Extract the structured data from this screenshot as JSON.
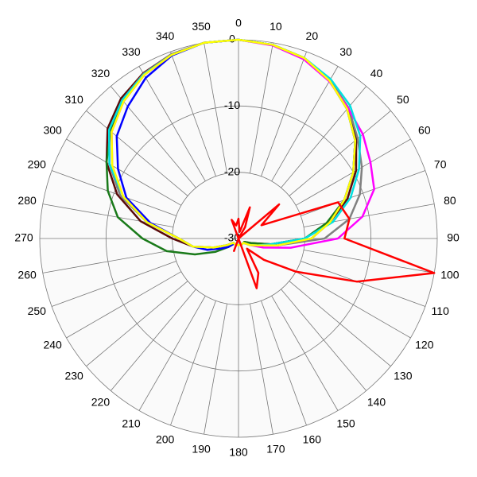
{
  "chart_data": {
    "type": "polar",
    "theta": [
      0,
      10,
      20,
      30,
      40,
      50,
      60,
      70,
      80,
      90,
      100,
      110,
      120,
      130,
      140,
      150,
      160,
      170,
      180,
      190,
      200,
      210,
      220,
      230,
      240,
      250,
      260,
      270,
      280,
      290,
      300,
      310,
      320,
      330,
      340,
      350
    ],
    "thetaticks": [
      0,
      10,
      20,
      30,
      40,
      50,
      60,
      70,
      80,
      90,
      100,
      110,
      120,
      130,
      140,
      150,
      160,
      170,
      180,
      190,
      200,
      210,
      220,
      230,
      240,
      250,
      260,
      270,
      280,
      290,
      300,
      310,
      320,
      330,
      340,
      350
    ],
    "rlim": [
      -30,
      0
    ],
    "rticks": [
      -30,
      -20,
      -10,
      0
    ],
    "grid": true,
    "series": [
      {
        "color": "#5a0a0a",
        "values": [
          0,
          -0.3,
          -1,
          -2.3,
          -4.3,
          -6.8,
          -9.5,
          -12.5,
          -16,
          -20,
          -25,
          -28,
          -29,
          -29,
          -29,
          -29,
          -29,
          -29,
          -29,
          -29,
          -29,
          -29,
          -29,
          -29,
          -28,
          -26,
          -23,
          -20,
          -15,
          -10.5,
          -7,
          -4.2,
          -2.4,
          -1.2,
          -0.4,
          0
        ]
      },
      {
        "color": "#808080",
        "values": [
          0,
          -0.3,
          -1,
          -2.4,
          -4.2,
          -6.5,
          -8.5,
          -10.5,
          -13,
          -17,
          -24,
          -27,
          -28,
          -29,
          -29,
          -29,
          -29,
          -29,
          -29,
          -29,
          -29,
          -29,
          -29,
          -29,
          -28,
          -26,
          -23,
          -21,
          -16,
          -11,
          -7.5,
          -4.6,
          -2.7,
          -1.3,
          -0.4,
          0
        ]
      },
      {
        "color": "#1a7a1a",
        "values": [
          0,
          -0.3,
          -1,
          -2.5,
          -4.5,
          -7,
          -10,
          -13,
          -16.5,
          -20,
          -25,
          -28,
          -29,
          -29,
          -29,
          -29,
          -29,
          -29,
          -29,
          -29,
          -29,
          -29,
          -29,
          -28,
          -26,
          -23,
          -19,
          -15.5,
          -11.5,
          -9,
          -7,
          -4.8,
          -3,
          -1.5,
          -0.5,
          0
        ]
      },
      {
        "color": "#0000ff",
        "values": [
          0,
          -0.3,
          -1,
          -2.5,
          -4.5,
          -7,
          -10,
          -13,
          -16,
          -19,
          -24,
          -27,
          -28,
          -29,
          -29,
          -29,
          -29,
          -29,
          -29,
          -29,
          -29,
          -29,
          -29,
          -28,
          -27,
          -25,
          -23,
          -21,
          -16.5,
          -12,
          -9,
          -6,
          -4,
          -2,
          -0.6,
          0
        ]
      },
      {
        "color": "#ff00ff",
        "values": [
          0,
          -0.4,
          -1.2,
          -2.6,
          -4.3,
          -5.5,
          -7,
          -8.2,
          -11,
          -15,
          -22,
          -26,
          -28,
          -29,
          -29,
          -29,
          -29,
          -29,
          -29,
          -29,
          -29,
          -29,
          -29,
          -29,
          -28,
          -26,
          -23,
          -21,
          -16,
          -11.5,
          -8,
          -5,
          -3,
          -1.5,
          -0.5,
          0
        ]
      },
      {
        "color": "#00e0e0",
        "values": [
          0,
          -0.3,
          -1,
          -2.2,
          -3.8,
          -6,
          -9,
          -12,
          -15.5,
          -20,
          -25,
          -27,
          -28,
          -29,
          -29,
          -29,
          -29,
          -29,
          -29,
          -29,
          -29,
          -29,
          -29,
          -29,
          -28,
          -26,
          -23,
          -21,
          -16,
          -11.5,
          -7.5,
          -4.5,
          -2.7,
          -1.4,
          -0.5,
          0
        ]
      },
      {
        "color": "#ffff00",
        "values": [
          0,
          -0.3,
          -1,
          -2.5,
          -4.5,
          -7,
          -10,
          -13,
          -16,
          -19,
          -24,
          -27,
          -28,
          -29,
          -29,
          -29,
          -29,
          -29,
          -29,
          -29,
          -29,
          -29,
          -29,
          -29,
          -28,
          -26,
          -23,
          -21,
          -16,
          -11.5,
          -8,
          -5,
          -3,
          -1.5,
          -0.5,
          0
        ]
      },
      {
        "color": "#ff0000",
        "values": [
          -27,
          -29,
          -25,
          -28,
          -30,
          -22,
          -26,
          -14,
          -13,
          -14,
          0,
          -11,
          -20,
          -25,
          -28,
          -24,
          -22,
          -30,
          -30,
          -30,
          -28,
          -30,
          -30,
          -30,
          -30,
          -30,
          -30,
          -30,
          -30,
          -30,
          -30,
          -30,
          -30,
          -30,
          -27,
          -28
        ]
      }
    ]
  }
}
